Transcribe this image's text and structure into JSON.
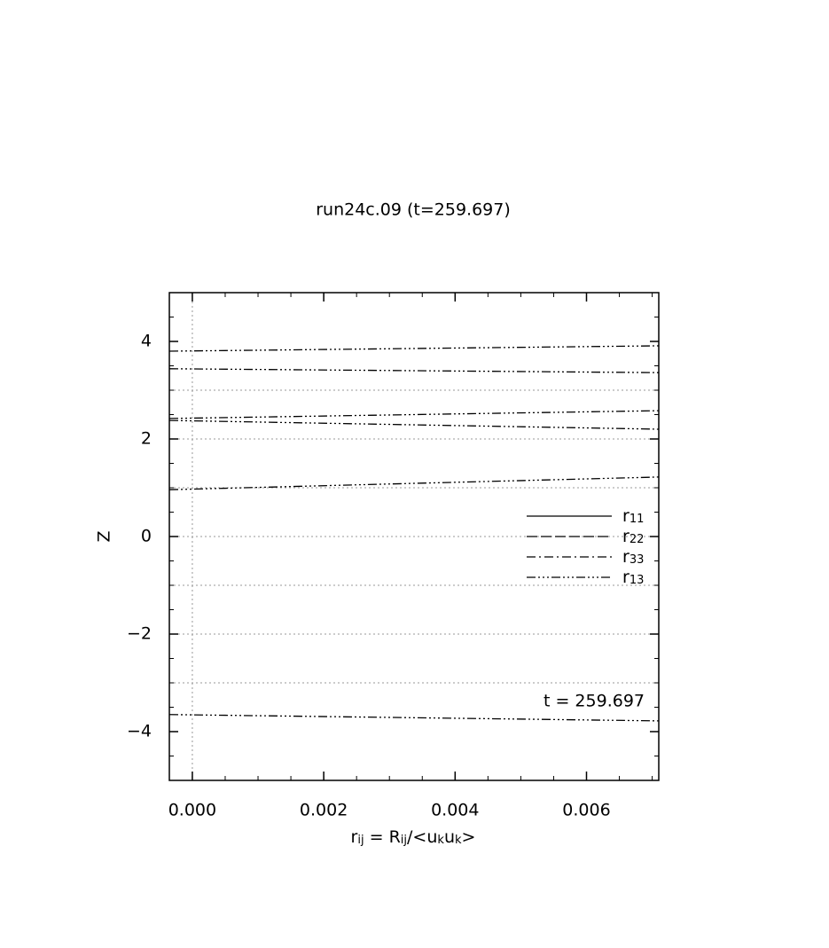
{
  "chart_data": {
    "type": "line",
    "title": "run24c.09 (t=259.697)",
    "xlabel_parts": [
      "r",
      "ij",
      " = R",
      "ij",
      "/<u",
      "k",
      "u",
      "k",
      ">"
    ],
    "ylabel": "Z",
    "annotation": "t = 259.697",
    "xlim": [
      -0.00035,
      0.0071
    ],
    "ylim": [
      -5,
      5
    ],
    "xticks": [
      {
        "value": 0,
        "label": "0.000"
      },
      {
        "value": 0.002,
        "label": "0.002"
      },
      {
        "value": 0.004,
        "label": "0.004"
      },
      {
        "value": 0.006,
        "label": "0.006"
      }
    ],
    "yticks": [
      {
        "value": -4,
        "label": "−4"
      },
      {
        "value": -2,
        "label": "−2"
      },
      0,
      2,
      4
    ],
    "minor_per_major": 4,
    "hgrid": [
      -3,
      -2,
      -1,
      0,
      1,
      2,
      3
    ],
    "vgrid": [
      0
    ],
    "color": "#000000",
    "series": [
      {
        "name": "r",
        "subscript": "11",
        "dash": "none",
        "x": [],
        "values": []
      },
      {
        "name": "r",
        "subscript": "22",
        "dash": "12 4",
        "x": [],
        "values": []
      },
      {
        "name": "r",
        "subscript": "33",
        "dash": "10 4 2 4",
        "x": [],
        "values": []
      },
      {
        "name": "r",
        "subscript": "13",
        "dash": "10 3 2 3 2 3 2 3",
        "x": [
          -0.00035,
          0.0071,
          null,
          -0.00035,
          0.0071,
          null,
          -0.00035,
          0.0071,
          null,
          -0.00035,
          0.0071,
          null,
          -0.00035,
          0.0071,
          null,
          -0.00035,
          0.0071
        ],
        "values": [
          3.8,
          3.91,
          null,
          3.44,
          3.36,
          null,
          2.42,
          2.58,
          null,
          2.38,
          2.2,
          null,
          0.96,
          1.22,
          null,
          -3.65,
          -3.78
        ]
      }
    ]
  }
}
